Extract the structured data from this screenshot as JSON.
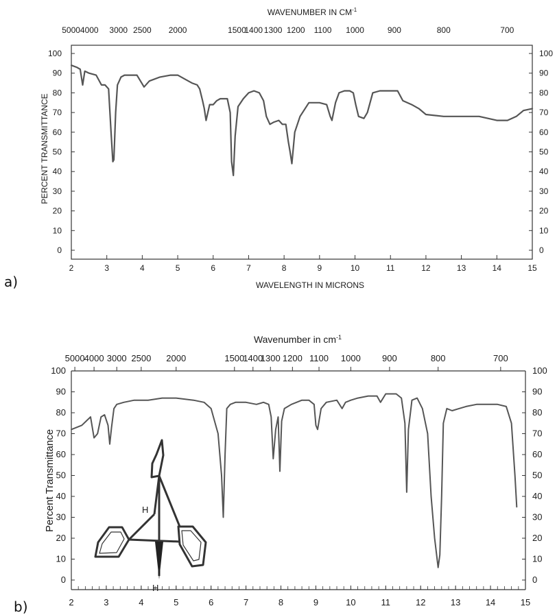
{
  "chart_data": [
    {
      "type": "line",
      "panel_label": "a)",
      "title": "",
      "top_axis_label": "WAVENUMBER IN CM",
      "top_axis_label_sup": "-1",
      "xlabel": "WAVELENGTH IN MICRONS",
      "ylabel": "PERCENT TRANSMITTANCE",
      "xlim": [
        2,
        15
      ],
      "ylim": [
        0,
        100
      ],
      "grid": false,
      "x_ticks": [
        "2",
        "3",
        "4",
        "5",
        "6",
        "7",
        "8",
        "9",
        "10",
        "11",
        "12",
        "13",
        "14",
        "15"
      ],
      "y_ticks": [
        "0",
        "10",
        "20",
        "30",
        "40",
        "50",
        "60",
        "70",
        "80",
        "90",
        "100"
      ],
      "wavenumber_ticks": [
        {
          "label": "50004000",
          "x": 2.25
        },
        {
          "label": "3000",
          "x": 3.33
        },
        {
          "label": "2500",
          "x": 4.0
        },
        {
          "label": "2000",
          "x": 5.0
        },
        {
          "label": "1500",
          "x": 6.67
        },
        {
          "label": "1400",
          "x": 7.14
        },
        {
          "label": "1300",
          "x": 7.69
        },
        {
          "label": "1200",
          "x": 8.33
        },
        {
          "label": "1100",
          "x": 9.09
        },
        {
          "label": "1000",
          "x": 10.0
        },
        {
          "label": "900",
          "x": 11.11
        },
        {
          "label": "800",
          "x": 12.5
        },
        {
          "label": "700",
          "x": 14.29
        }
      ],
      "series": [
        {
          "x": [
            2.0,
            2.15,
            2.25,
            2.32,
            2.38,
            2.5,
            2.7,
            2.85,
            2.95,
            3.05,
            3.12,
            3.17,
            3.2,
            3.25,
            3.3,
            3.4,
            3.5,
            3.7,
            3.85,
            3.95,
            4.05,
            4.2,
            4.5,
            4.8,
            5.0,
            5.2,
            5.4,
            5.55,
            5.62,
            5.7,
            5.75,
            5.8,
            5.9,
            6.0,
            6.1,
            6.2,
            6.4,
            6.48,
            6.52,
            6.57,
            6.62,
            6.7,
            6.85,
            7.0,
            7.15,
            7.3,
            7.42,
            7.5,
            7.6,
            7.7,
            7.85,
            7.95,
            8.05,
            8.12,
            8.17,
            8.22,
            8.3,
            8.45,
            8.7,
            9.0,
            9.2,
            9.3,
            9.35,
            9.45,
            9.55,
            9.7,
            9.85,
            9.95,
            10.02,
            10.1,
            10.25,
            10.35,
            10.5,
            10.7,
            11.0,
            11.2,
            11.35,
            11.6,
            11.8,
            12.0,
            12.5,
            13.0,
            13.5,
            14.0,
            14.3,
            14.55,
            14.75,
            15.0
          ],
          "y": [
            94,
            93,
            92,
            84,
            91,
            90,
            89,
            84,
            84,
            82,
            60,
            45,
            46,
            70,
            84,
            88,
            89,
            89,
            89,
            86,
            83,
            86,
            88,
            89,
            89,
            87,
            85,
            84,
            82,
            76,
            72,
            66,
            74,
            74,
            76,
            77,
            77,
            70,
            45,
            38,
            58,
            73,
            77,
            80,
            81,
            80,
            76,
            68,
            64,
            65,
            66,
            64,
            64,
            55,
            50,
            44,
            60,
            68,
            75,
            75,
            74,
            68,
            66,
            75,
            80,
            81,
            81,
            80,
            74,
            68,
            67,
            70,
            80,
            81,
            81,
            81,
            76,
            74,
            72,
            69,
            68,
            68,
            68,
            66,
            66,
            68,
            71,
            72
          ]
        }
      ]
    },
    {
      "type": "line",
      "panel_label": "b)",
      "title": "",
      "top_axis_label": "Wavenumber in cm",
      "top_axis_label_sup": "-1",
      "xlabel": "",
      "ylabel": "Percent Transmittance",
      "xlim": [
        2,
        15
      ],
      "ylim": [
        0,
        100
      ],
      "grid": false,
      "x_ticks": [
        "2",
        "3",
        "4",
        "5",
        "6",
        "7",
        "8",
        "9",
        "10",
        "11",
        "12",
        "13",
        "14",
        "15"
      ],
      "y_ticks": [
        "0",
        "10",
        "20",
        "30",
        "40",
        "50",
        "60",
        "70",
        "80",
        "90",
        "100"
      ],
      "inset_labels": [
        "H",
        "H"
      ],
      "wavenumber_ticks": [
        {
          "label": "5000",
          "x": 2.1
        },
        {
          "label": "4000",
          "x": 2.65
        },
        {
          "label": "3000",
          "x": 3.3
        },
        {
          "label": "2500",
          "x": 4.0
        },
        {
          "label": "2000",
          "x": 5.0
        },
        {
          "label": "1500",
          "x": 6.67
        },
        {
          "label": "1400",
          "x": 7.2
        },
        {
          "label": "1300",
          "x": 7.7
        },
        {
          "label": "1200",
          "x": 8.33
        },
        {
          "label": "1100",
          "x": 9.09
        },
        {
          "label": "1000",
          "x": 10.0
        },
        {
          "label": "900",
          "x": 11.11
        },
        {
          "label": "800",
          "x": 12.5
        },
        {
          "label": "700",
          "x": 14.29
        }
      ],
      "series": [
        {
          "x": [
            2.0,
            2.3,
            2.55,
            2.65,
            2.75,
            2.85,
            2.95,
            3.05,
            3.1,
            3.15,
            3.22,
            3.3,
            3.5,
            3.8,
            4.2,
            4.6,
            5.0,
            5.5,
            5.8,
            6.0,
            6.2,
            6.3,
            6.35,
            6.4,
            6.45,
            6.55,
            6.7,
            7.0,
            7.3,
            7.5,
            7.65,
            7.72,
            7.78,
            7.85,
            7.92,
            7.97,
            8.02,
            8.1,
            8.3,
            8.6,
            8.8,
            8.95,
            9.0,
            9.05,
            9.15,
            9.3,
            9.6,
            9.75,
            9.85,
            10.0,
            10.2,
            10.5,
            10.75,
            10.85,
            11.0,
            11.3,
            11.45,
            11.55,
            11.6,
            11.65,
            11.75,
            11.9,
            12.05,
            12.2,
            12.3,
            12.4,
            12.5,
            12.55,
            12.6,
            12.65,
            12.75,
            12.9,
            13.1,
            13.3,
            13.6,
            13.9,
            14.2,
            14.45,
            14.6,
            14.7,
            14.75
          ],
          "y": [
            72,
            74,
            78,
            68,
            70,
            78,
            79,
            74,
            65,
            73,
            82,
            84,
            85,
            86,
            86,
            87,
            87,
            86,
            85,
            82,
            70,
            50,
            30,
            60,
            82,
            84,
            85,
            85,
            84,
            85,
            84,
            78,
            58,
            72,
            78,
            52,
            76,
            82,
            84,
            86,
            86,
            84,
            74,
            72,
            82,
            85,
            86,
            82,
            85,
            86,
            87,
            88,
            88,
            85,
            89,
            89,
            87,
            75,
            42,
            72,
            86,
            87,
            82,
            70,
            40,
            20,
            6,
            12,
            40,
            75,
            82,
            81,
            82,
            83,
            84,
            84,
            84,
            83,
            75,
            50,
            35
          ]
        }
      ]
    }
  ]
}
